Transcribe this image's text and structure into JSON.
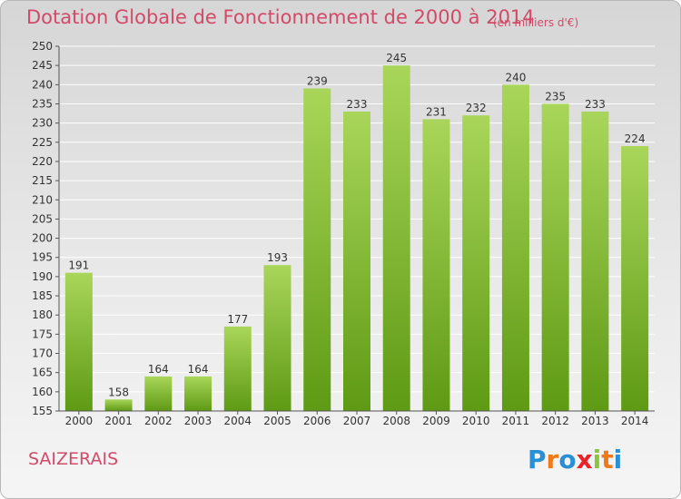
{
  "title": "Dotation Globale de Fonctionnement de 2000 à 2014",
  "subtitle": "(en milliers d'€)",
  "commune": "SAIZERAIS",
  "logo": {
    "text": "Proxiti",
    "letters": [
      "P",
      "r",
      "o",
      "x",
      "i",
      "t",
      "i"
    ],
    "colors": [
      "#2b8fd6",
      "#f07a1a",
      "#2b8fd6",
      "#e8232a",
      "#8cc63f",
      "#f07a1a",
      "#2b8fd6"
    ]
  },
  "colors": {
    "bar_light": "#a9d65a",
    "bar_dark": "#5e9a14",
    "accent": "#d24a68"
  },
  "chart_data": {
    "type": "bar",
    "title": "Dotation Globale de Fonctionnement de 2000 à 2014",
    "subtitle": "(en milliers d'€)",
    "categories": [
      "2000",
      "2001",
      "2002",
      "2003",
      "2004",
      "2005",
      "2006",
      "2007",
      "2008",
      "2009",
      "2010",
      "2011",
      "2012",
      "2013",
      "2014"
    ],
    "values": [
      191,
      158,
      164,
      164,
      177,
      193,
      239,
      233,
      245,
      231,
      232,
      240,
      235,
      233,
      224
    ],
    "ylim": [
      155,
      250
    ],
    "yticks": [
      155,
      160,
      165,
      170,
      175,
      180,
      185,
      190,
      195,
      200,
      205,
      210,
      215,
      220,
      225,
      230,
      235,
      240,
      245,
      250
    ],
    "grid": true,
    "xlabel": "",
    "ylabel": ""
  }
}
